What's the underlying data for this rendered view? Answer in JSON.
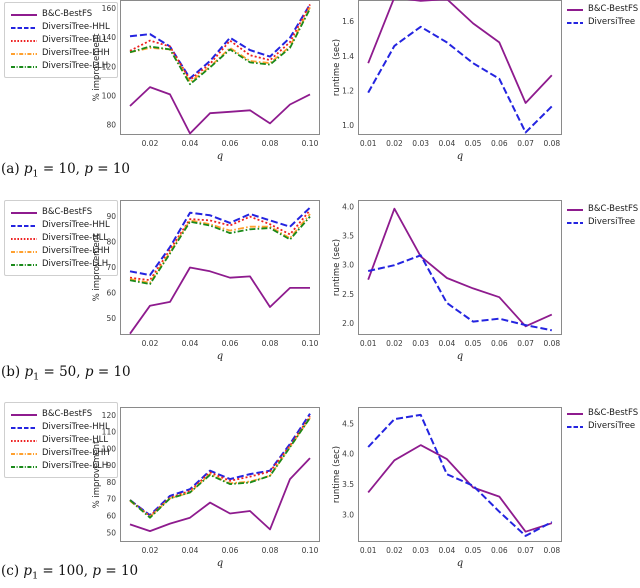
{
  "figure": {
    "background": "#ffffff",
    "colors": {
      "bc_bestfs": "#8e1b8e",
      "diversitree_hhl": "#2424e0",
      "diversitree_hll": "#ee2020",
      "diversitree_lhh": "#ffa02e",
      "diversitree_llh": "#1a8a1a"
    }
  },
  "captions": [
    {
      "label": "(a)",
      "sym1": "p",
      "sub1": "1",
      "eq1": "=",
      "val1": "10,",
      "sym2": "p",
      "eq2": "=",
      "val2": "10"
    },
    {
      "label": "(b)",
      "sym1": "p",
      "sub1": "1",
      "eq1": "=",
      "val1": "50,",
      "sym2": "p",
      "eq2": "=",
      "val2": "10"
    },
    {
      "label": "(c)",
      "sym1": "p",
      "sub1": "1",
      "eq1": "=",
      "val1": "100,",
      "sym2": "p",
      "eq2": "=",
      "val2": "10"
    }
  ],
  "chart_data": [
    {
      "type": "line",
      "id": "row1-left",
      "xlabel": "q",
      "ylabel": "% improvement",
      "x": [
        0.01,
        0.02,
        0.03,
        0.04,
        0.05,
        0.06,
        0.07,
        0.08,
        0.09,
        0.1
      ],
      "xtick_values": [
        0.02,
        0.04,
        0.06,
        0.08,
        0.1
      ],
      "xtick_labels": [
        "0.02",
        "0.04",
        "0.06",
        "0.08",
        "0.10"
      ],
      "ytick_values": [
        80,
        100,
        120,
        140,
        160
      ],
      "ytick_labels": [
        "80",
        "100",
        "120",
        "140",
        "160"
      ],
      "ylim": [
        73,
        166
      ],
      "grid": false,
      "legend_position": "outside-left",
      "series": [
        {
          "name": "B&C-BestFS",
          "color": "#8e1b8e",
          "style": "solid",
          "values": [
            93,
            106,
            101,
            74,
            88,
            89,
            90,
            81,
            94,
            101
          ]
        },
        {
          "name": "DiversiTree-HHL",
          "color": "#2424e0",
          "style": "dashed",
          "values": [
            141,
            142.5,
            134,
            112,
            124,
            140,
            131.5,
            127,
            140,
            163
          ]
        },
        {
          "name": "DiversiTree-HLL",
          "color": "#ee2020",
          "style": "dotted",
          "values": [
            131,
            138,
            134,
            111,
            122,
            138,
            128,
            124.5,
            137,
            163
          ]
        },
        {
          "name": "DiversiTree-LHH",
          "color": "#ffa02e",
          "style": "dashdot",
          "values": [
            130,
            133,
            132,
            109.5,
            120,
            133,
            124,
            122.5,
            134,
            161
          ]
        },
        {
          "name": "DiversiTree-LLH",
          "color": "#1a8a1a",
          "style": "dashdot",
          "values": [
            130,
            134,
            132,
            108,
            119.5,
            132,
            123,
            121.5,
            133,
            160
          ]
        }
      ]
    },
    {
      "type": "line",
      "id": "row1-right",
      "xlabel": "q",
      "ylabel": "runtime (sec)",
      "x": [
        0.01,
        0.02,
        0.03,
        0.04,
        0.05,
        0.06,
        0.07,
        0.08
      ],
      "xtick_values": [
        0.01,
        0.02,
        0.03,
        0.04,
        0.05,
        0.06,
        0.07,
        0.08
      ],
      "xtick_labels": [
        "0.01",
        "0.02",
        "0.03",
        "0.04",
        "0.05",
        "0.06",
        "0.07",
        "0.08"
      ],
      "ytick_values": [
        1.0,
        1.2,
        1.4,
        1.6
      ],
      "ytick_labels": [
        "1.0",
        "1.2",
        "1.4",
        "1.6"
      ],
      "ylim": [
        0.945,
        1.725
      ],
      "grid": false,
      "legend_position": "outside-right",
      "series": [
        {
          "name": "B&C-BestFS",
          "color": "#8e1b8e",
          "style": "solid",
          "values": [
            1.36,
            1.74,
            1.72,
            1.73,
            1.59,
            1.48,
            1.13,
            1.29
          ]
        },
        {
          "name": "DiversiTree",
          "color": "#2424e0",
          "style": "dashed",
          "values": [
            1.19,
            1.46,
            1.57,
            1.48,
            1.36,
            1.27,
            0.96,
            1.11
          ]
        }
      ]
    },
    {
      "type": "line",
      "id": "row2-left",
      "xlabel": "q",
      "ylabel": "% improvement",
      "x": [
        0.01,
        0.02,
        0.03,
        0.04,
        0.05,
        0.06,
        0.07,
        0.08,
        0.09,
        0.1
      ],
      "xtick_values": [
        0.02,
        0.04,
        0.06,
        0.08,
        0.1
      ],
      "xtick_labels": [
        "0.02",
        "0.04",
        "0.06",
        "0.08",
        "0.10"
      ],
      "ytick_values": [
        50,
        60,
        70,
        80,
        90
      ],
      "ytick_labels": [
        "50",
        "60",
        "70",
        "80",
        "90"
      ],
      "ylim": [
        43.5,
        96.5
      ],
      "grid": false,
      "legend_position": "outside-left",
      "series": [
        {
          "name": "B&C-BestFS",
          "color": "#8e1b8e",
          "style": "solid",
          "values": [
            44,
            55,
            56.5,
            70,
            68.5,
            66,
            66.5,
            54.5,
            62,
            62
          ]
        },
        {
          "name": "DiversiTree-HHL",
          "color": "#2424e0",
          "style": "dashed",
          "values": [
            68.5,
            67,
            78,
            91.5,
            90.5,
            87.5,
            91,
            88.5,
            86,
            93.5
          ]
        },
        {
          "name": "DiversiTree-HLL",
          "color": "#ee2020",
          "style": "dotted",
          "values": [
            66,
            65,
            77,
            89,
            88.5,
            86.5,
            90,
            87,
            83,
            92.5
          ]
        },
        {
          "name": "DiversiTree-LHH",
          "color": "#ffa02e",
          "style": "dashdot",
          "values": [
            65.5,
            64,
            76,
            88.5,
            87,
            84.5,
            86,
            86,
            81.5,
            91
          ]
        },
        {
          "name": "DiversiTree-LLH",
          "color": "#1a8a1a",
          "style": "dashdot",
          "values": [
            65,
            63.5,
            75.5,
            88,
            86.5,
            83.5,
            85,
            85.5,
            81,
            90
          ]
        }
      ]
    },
    {
      "type": "line",
      "id": "row2-right",
      "xlabel": "q",
      "ylabel": "runtime (sec)",
      "x": [
        0.01,
        0.02,
        0.03,
        0.04,
        0.05,
        0.06,
        0.07,
        0.08
      ],
      "xtick_values": [
        0.01,
        0.02,
        0.03,
        0.04,
        0.05,
        0.06,
        0.07,
        0.08
      ],
      "xtick_labels": [
        "0.01",
        "0.02",
        "0.03",
        "0.04",
        "0.05",
        "0.06",
        "0.07",
        "0.08"
      ],
      "ytick_values": [
        2.0,
        2.5,
        3.0,
        3.5,
        4.0
      ],
      "ytick_labels": [
        "2.0",
        "2.5",
        "3.0",
        "3.5",
        "4.0"
      ],
      "ylim": [
        1.8,
        4.12
      ],
      "grid": false,
      "legend_position": "outside-right",
      "series": [
        {
          "name": "B&C-BestFS",
          "color": "#8e1b8e",
          "style": "solid",
          "values": [
            2.75,
            3.97,
            3.15,
            2.78,
            2.6,
            2.45,
            1.95,
            2.15
          ]
        },
        {
          "name": "DiversiTree",
          "color": "#2424e0",
          "style": "dashed",
          "values": [
            2.9,
            3.0,
            3.17,
            2.35,
            2.03,
            2.08,
            1.97,
            1.88
          ]
        }
      ]
    },
    {
      "type": "line",
      "id": "row3-left",
      "xlabel": "q",
      "ylabel": "% improvement",
      "x": [
        0.01,
        0.02,
        0.03,
        0.04,
        0.05,
        0.06,
        0.07,
        0.08,
        0.09,
        0.1
      ],
      "xtick_values": [
        0.02,
        0.04,
        0.06,
        0.08,
        0.1
      ],
      "xtick_labels": [
        "0.02",
        "0.04",
        "0.06",
        "0.08",
        "0.10"
      ],
      "ytick_values": [
        50,
        60,
        70,
        80,
        90,
        100,
        110,
        120
      ],
      "ytick_labels": [
        "50",
        "60",
        "70",
        "80",
        "90",
        "100",
        "110",
        "120"
      ],
      "ylim": [
        44.5,
        125
      ],
      "grid": false,
      "legend_position": "outside-left",
      "series": [
        {
          "name": "B&C-BestFS",
          "color": "#8e1b8e",
          "style": "solid",
          "values": [
            55,
            51,
            55.5,
            59,
            68,
            61.5,
            63,
            52,
            82,
            94.5
          ]
        },
        {
          "name": "DiversiTree-HHL",
          "color": "#2424e0",
          "style": "dashed",
          "values": [
            69.5,
            60.5,
            72,
            76,
            87,
            82,
            85,
            87,
            103,
            121
          ]
        },
        {
          "name": "DiversiTree-HLL",
          "color": "#ee2020",
          "style": "dotted",
          "values": [
            69.5,
            60,
            71,
            75,
            86,
            81,
            83.5,
            86.5,
            102,
            119.5
          ]
        },
        {
          "name": "DiversiTree-LHH",
          "color": "#ffa02e",
          "style": "dashdot",
          "values": [
            69,
            59.5,
            70.5,
            74,
            85,
            79.5,
            80.5,
            84,
            101,
            118.5
          ]
        },
        {
          "name": "DiversiTree-LLH",
          "color": "#1a8a1a",
          "style": "dashdot",
          "values": [
            69.5,
            59,
            70.5,
            74,
            84.5,
            79,
            80,
            84,
            101,
            118.5
          ]
        }
      ]
    },
    {
      "type": "line",
      "id": "row3-right",
      "xlabel": "q",
      "ylabel": "runtime (sec)",
      "x": [
        0.01,
        0.02,
        0.03,
        0.04,
        0.05,
        0.06,
        0.07,
        0.08
      ],
      "xtick_values": [
        0.01,
        0.02,
        0.03,
        0.04,
        0.05,
        0.06,
        0.07,
        0.08
      ],
      "xtick_labels": [
        "0.01",
        "0.02",
        "0.03",
        "0.04",
        "0.05",
        "0.06",
        "0.07",
        "0.08"
      ],
      "ytick_values": [
        3.0,
        3.5,
        4.0,
        4.5
      ],
      "ytick_labels": [
        "3.0",
        "3.5",
        "4.0",
        "4.5"
      ],
      "ylim": [
        2.55,
        4.78
      ],
      "grid": false,
      "legend_position": "outside-right",
      "series": [
        {
          "name": "B&C-BestFS",
          "color": "#8e1b8e",
          "style": "solid",
          "values": [
            3.37,
            3.9,
            4.15,
            3.92,
            3.45,
            3.3,
            2.72,
            2.86
          ]
        },
        {
          "name": "DiversiTree",
          "color": "#2424e0",
          "style": "dashed",
          "values": [
            4.12,
            4.58,
            4.65,
            3.67,
            3.48,
            3.05,
            2.65,
            2.88
          ]
        }
      ]
    }
  ]
}
